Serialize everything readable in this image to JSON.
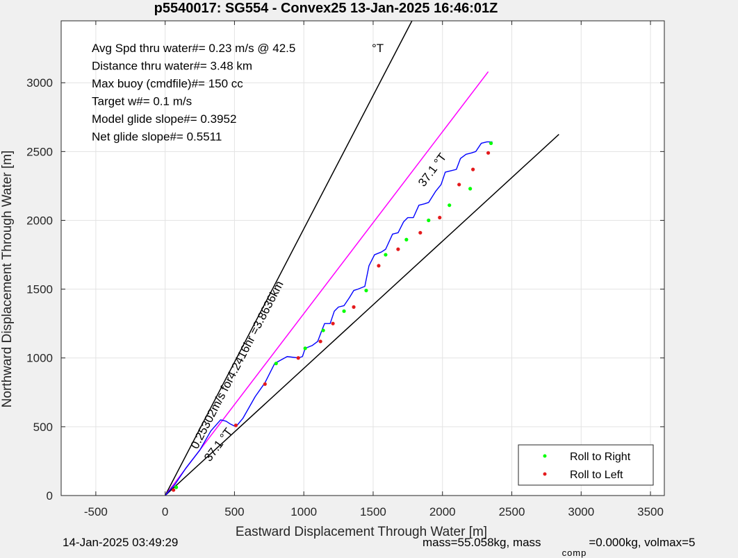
{
  "chart_data": {
    "type": "line",
    "title": "p5540017: SG554 - Convex25 13-Jan-2025 16:46:01Z",
    "xlabel": "Eastward Displacement Through Water [m]",
    "ylabel": "Northward Displacement Through Water [m]",
    "xlim": [
      -750,
      3600
    ],
    "ylim": [
      0,
      3450
    ],
    "xticks": [
      -500,
      0,
      500,
      1000,
      1500,
      2000,
      2500,
      3000,
      3500
    ],
    "yticks": [
      0,
      500,
      1000,
      1500,
      2000,
      2500,
      3000
    ],
    "grid": true,
    "legend_position": "bottom-right",
    "stats": [
      "Avg Spd thru water#=  0.23 m/s @  42.5",
      "Distance thru water#=  3.48 km",
      "Max buoy (cmdfile)#= 150 cc",
      "Target w#= 0.1 m/s",
      "Model glide slope#= 0.3952",
      "Net glide slope#= 0.5511"
    ],
    "heading_unit": "°T",
    "annotations": {
      "speed_label": "0.25302m/s for4.2416hr =3.8636km",
      "heading_label_upper": "37.1 °T",
      "heading_label_lower": "37.1 °T"
    },
    "reference_lines": [
      {
        "name": "heading",
        "color": "#000000",
        "x": [
          0,
          1780
        ],
        "y": [
          0,
          3450
        ]
      },
      {
        "name": "heading",
        "color": "#000000",
        "x": [
          0,
          2840
        ],
        "y": [
          0,
          2625
        ]
      },
      {
        "name": "mean-track",
        "color": "#ff00ff",
        "x": [
          0,
          2330
        ],
        "y": [
          0,
          3080
        ]
      }
    ],
    "track": {
      "color": "#0000ff",
      "x": [
        0,
        70,
        150,
        250,
        330,
        400,
        440,
        470,
        510,
        560,
        650,
        720,
        790,
        880,
        960,
        990,
        1010,
        1060,
        1100,
        1130,
        1150,
        1190,
        1220,
        1250,
        1290,
        1330,
        1360,
        1390,
        1440,
        1470,
        1510,
        1560,
        1590,
        1640,
        1680,
        1720,
        1750,
        1790,
        1830,
        1870,
        1900,
        1950,
        1990,
        2020,
        2060,
        2100,
        2130,
        2170,
        2210,
        2240,
        2280,
        2320,
        2360
      ],
      "y": [
        0,
        80,
        200,
        330,
        470,
        550,
        540,
        520,
        500,
        560,
        720,
        820,
        960,
        1010,
        1000,
        1010,
        1070,
        1090,
        1120,
        1200,
        1250,
        1250,
        1340,
        1370,
        1380,
        1440,
        1490,
        1500,
        1520,
        1670,
        1750,
        1770,
        1790,
        1900,
        1910,
        1990,
        2020,
        2020,
        2110,
        2120,
        2130,
        2210,
        2260,
        2350,
        2360,
        2370,
        2450,
        2480,
        2490,
        2500,
        2560,
        2570,
        2570
      ]
    },
    "series": [
      {
        "name": "Roll to Right",
        "color": "#00ff00",
        "x": [
          80,
          800,
          1010,
          1140,
          1290,
          1450,
          1590,
          1740,
          1900,
          2050,
          2200,
          2350
        ],
        "y": [
          60,
          960,
          1070,
          1200,
          1340,
          1490,
          1750,
          1860,
          2000,
          2110,
          2230,
          2560
        ]
      },
      {
        "name": "Roll to Left",
        "color": "#e41a1c",
        "x": [
          60,
          510,
          720,
          960,
          1120,
          1210,
          1360,
          1540,
          1680,
          1840,
          1980,
          2120,
          2220,
          2330
        ],
        "y": [
          40,
          510,
          810,
          1000,
          1120,
          1250,
          1370,
          1670,
          1790,
          1910,
          2020,
          2260,
          2370,
          2490
        ]
      }
    ]
  },
  "footer": {
    "timestamp": "14-Jan-2025 03:49:29",
    "mass_text": "mass=55.058kg, mass",
    "mass_subscript": "comp",
    "mass_rest": "=0.000kg, volmax=5"
  }
}
